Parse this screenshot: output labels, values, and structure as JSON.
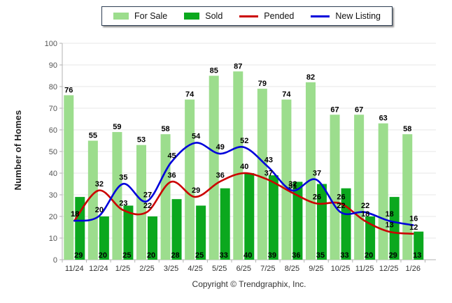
{
  "legend": {
    "items": [
      {
        "label": "For Sale",
        "swatch": "bar",
        "color": "#9CDD8D"
      },
      {
        "label": "Sold",
        "swatch": "bar",
        "color": "#0BA81E"
      },
      {
        "label": "Pended",
        "swatch": "line",
        "color": "#CB0000"
      },
      {
        "label": "New Listing",
        "swatch": "line",
        "color": "#0000DB"
      }
    ]
  },
  "chart_data": {
    "type": "combo-bar-line",
    "title": "",
    "ylabel": "Number of Homes",
    "xlabel": "",
    "ylim": [
      0,
      100
    ],
    "yticks": [
      0,
      10,
      20,
      30,
      40,
      50,
      60,
      70,
      80,
      90,
      100
    ],
    "grid": true,
    "legend_position": "top-center",
    "categories": [
      "11/24",
      "12/24",
      "1/25",
      "2/25",
      "3/25",
      "4/25",
      "5/25",
      "6/25",
      "7/25",
      "8/25",
      "9/25",
      "10/25",
      "11/25",
      "12/25",
      "1/26"
    ],
    "series": [
      {
        "name": "For Sale",
        "type": "bar",
        "color": "#9CDD8D",
        "label_position": "above-bar",
        "values": [
          76,
          55,
          59,
          53,
          58,
          74,
          85,
          87,
          79,
          74,
          82,
          67,
          67,
          63,
          58
        ]
      },
      {
        "name": "Sold",
        "type": "bar",
        "color": "#0BA81E",
        "label_position": "bottom",
        "values": [
          29,
          20,
          25,
          20,
          28,
          25,
          33,
          40,
          39,
          36,
          35,
          33,
          20,
          29,
          13
        ]
      },
      {
        "name": "Pended",
        "type": "line",
        "color": "#CB0000",
        "label_position": "above-point",
        "values": [
          18,
          32,
          23,
          22,
          36,
          29,
          36,
          40,
          37,
          31,
          26,
          26,
          18,
          13,
          12
        ]
      },
      {
        "name": "New Listing",
        "type": "line",
        "color": "#0000DB",
        "label_position": "above-point",
        "values": [
          18,
          20,
          35,
          27,
          45,
          54,
          49,
          52,
          43,
          32,
          37,
          22,
          22,
          18,
          16
        ]
      }
    ]
  },
  "footer": {
    "copyright": "Copyright © Trendgraphix, Inc."
  }
}
